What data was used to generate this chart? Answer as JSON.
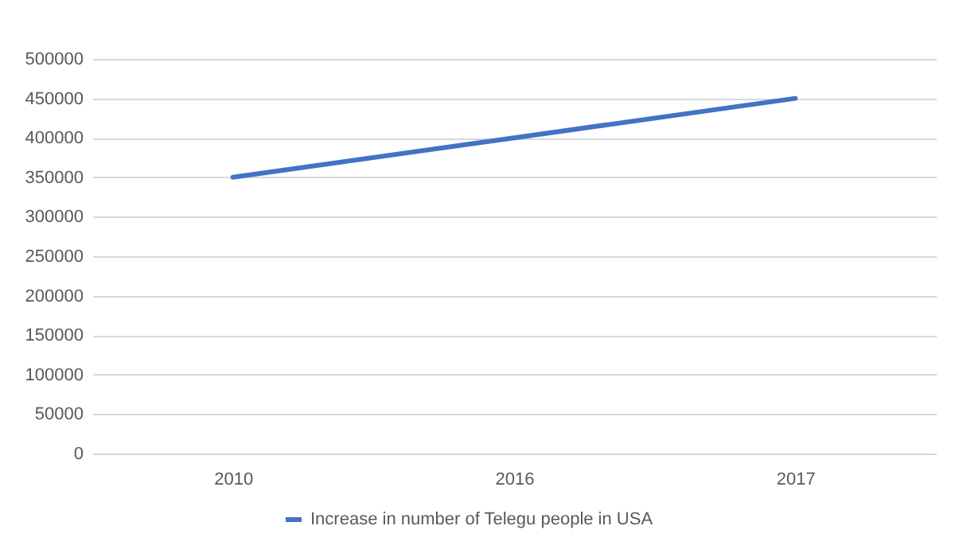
{
  "chart_data": {
    "type": "line",
    "categories": [
      "2010",
      "2016",
      "2017"
    ],
    "series": [
      {
        "name": "Increase in number of Telegu people in USA",
        "color": "#4472c4",
        "values": [
          350000,
          400000,
          450000
        ]
      }
    ],
    "ylim": [
      0,
      500000
    ],
    "yticks": [
      0,
      50000,
      100000,
      150000,
      200000,
      250000,
      300000,
      350000,
      400000,
      450000,
      500000
    ],
    "grid": "y",
    "legend": "bottom",
    "marker": "none",
    "line_style": "solid"
  }
}
